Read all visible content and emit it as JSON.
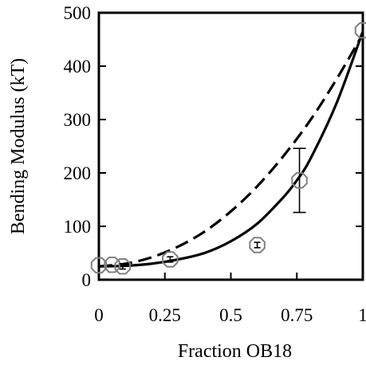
{
  "chart_data": {
    "type": "scatter",
    "xlabel": "Fraction OB18",
    "ylabel": "Bending Modulus (kT)",
    "xlim": [
      0,
      1
    ],
    "ylim": [
      0,
      500
    ],
    "x_ticks": [
      {
        "value": 0,
        "label": "0"
      },
      {
        "value": 0.25,
        "label": "0.25"
      },
      {
        "value": 0.5,
        "label": "0.5"
      },
      {
        "value": 0.75,
        "label": "0.75"
      },
      {
        "value": 1,
        "label": "1"
      }
    ],
    "y_ticks": [
      {
        "value": 0,
        "label": "0"
      },
      {
        "value": 100,
        "label": "100"
      },
      {
        "value": 200,
        "label": "200"
      },
      {
        "value": 300,
        "label": "300"
      },
      {
        "value": 400,
        "label": "400"
      },
      {
        "value": 500,
        "label": "500"
      }
    ],
    "grid": false,
    "legend": false,
    "series": [
      {
        "kind": "points",
        "marker": "open-octagon",
        "color": "#808080",
        "points": [
          {
            "x": 0.0,
            "y": 27,
            "err": 0
          },
          {
            "x": 0.05,
            "y": 28,
            "err": 0
          },
          {
            "x": 0.09,
            "y": 25,
            "err": 5
          },
          {
            "x": 0.27,
            "y": 38,
            "err": 5
          },
          {
            "x": 0.6,
            "y": 65,
            "err": 5
          },
          {
            "x": 0.76,
            "y": 186,
            "err": 60
          },
          {
            "x": 1.0,
            "y": 467,
            "err": 0
          }
        ]
      },
      {
        "kind": "line",
        "style": "solid",
        "color": "#000000",
        "points": [
          {
            "x": 0.0,
            "y": 25
          },
          {
            "x": 0.1,
            "y": 26
          },
          {
            "x": 0.2,
            "y": 30
          },
          {
            "x": 0.3,
            "y": 38
          },
          {
            "x": 0.4,
            "y": 50
          },
          {
            "x": 0.5,
            "y": 72
          },
          {
            "x": 0.6,
            "y": 105
          },
          {
            "x": 0.7,
            "y": 155
          },
          {
            "x": 0.75,
            "y": 186
          },
          {
            "x": 0.8,
            "y": 225
          },
          {
            "x": 0.9,
            "y": 330
          },
          {
            "x": 1.0,
            "y": 465
          }
        ]
      },
      {
        "kind": "line",
        "style": "dashed",
        "color": "#000000",
        "points": [
          {
            "x": 0.0,
            "y": 25
          },
          {
            "x": 0.1,
            "y": 30
          },
          {
            "x": 0.2,
            "y": 42
          },
          {
            "x": 0.3,
            "y": 62
          },
          {
            "x": 0.4,
            "y": 90
          },
          {
            "x": 0.5,
            "y": 128
          },
          {
            "x": 0.6,
            "y": 175
          },
          {
            "x": 0.7,
            "y": 232
          },
          {
            "x": 0.8,
            "y": 298
          },
          {
            "x": 0.9,
            "y": 375
          },
          {
            "x": 1.0,
            "y": 460
          }
        ]
      }
    ]
  }
}
